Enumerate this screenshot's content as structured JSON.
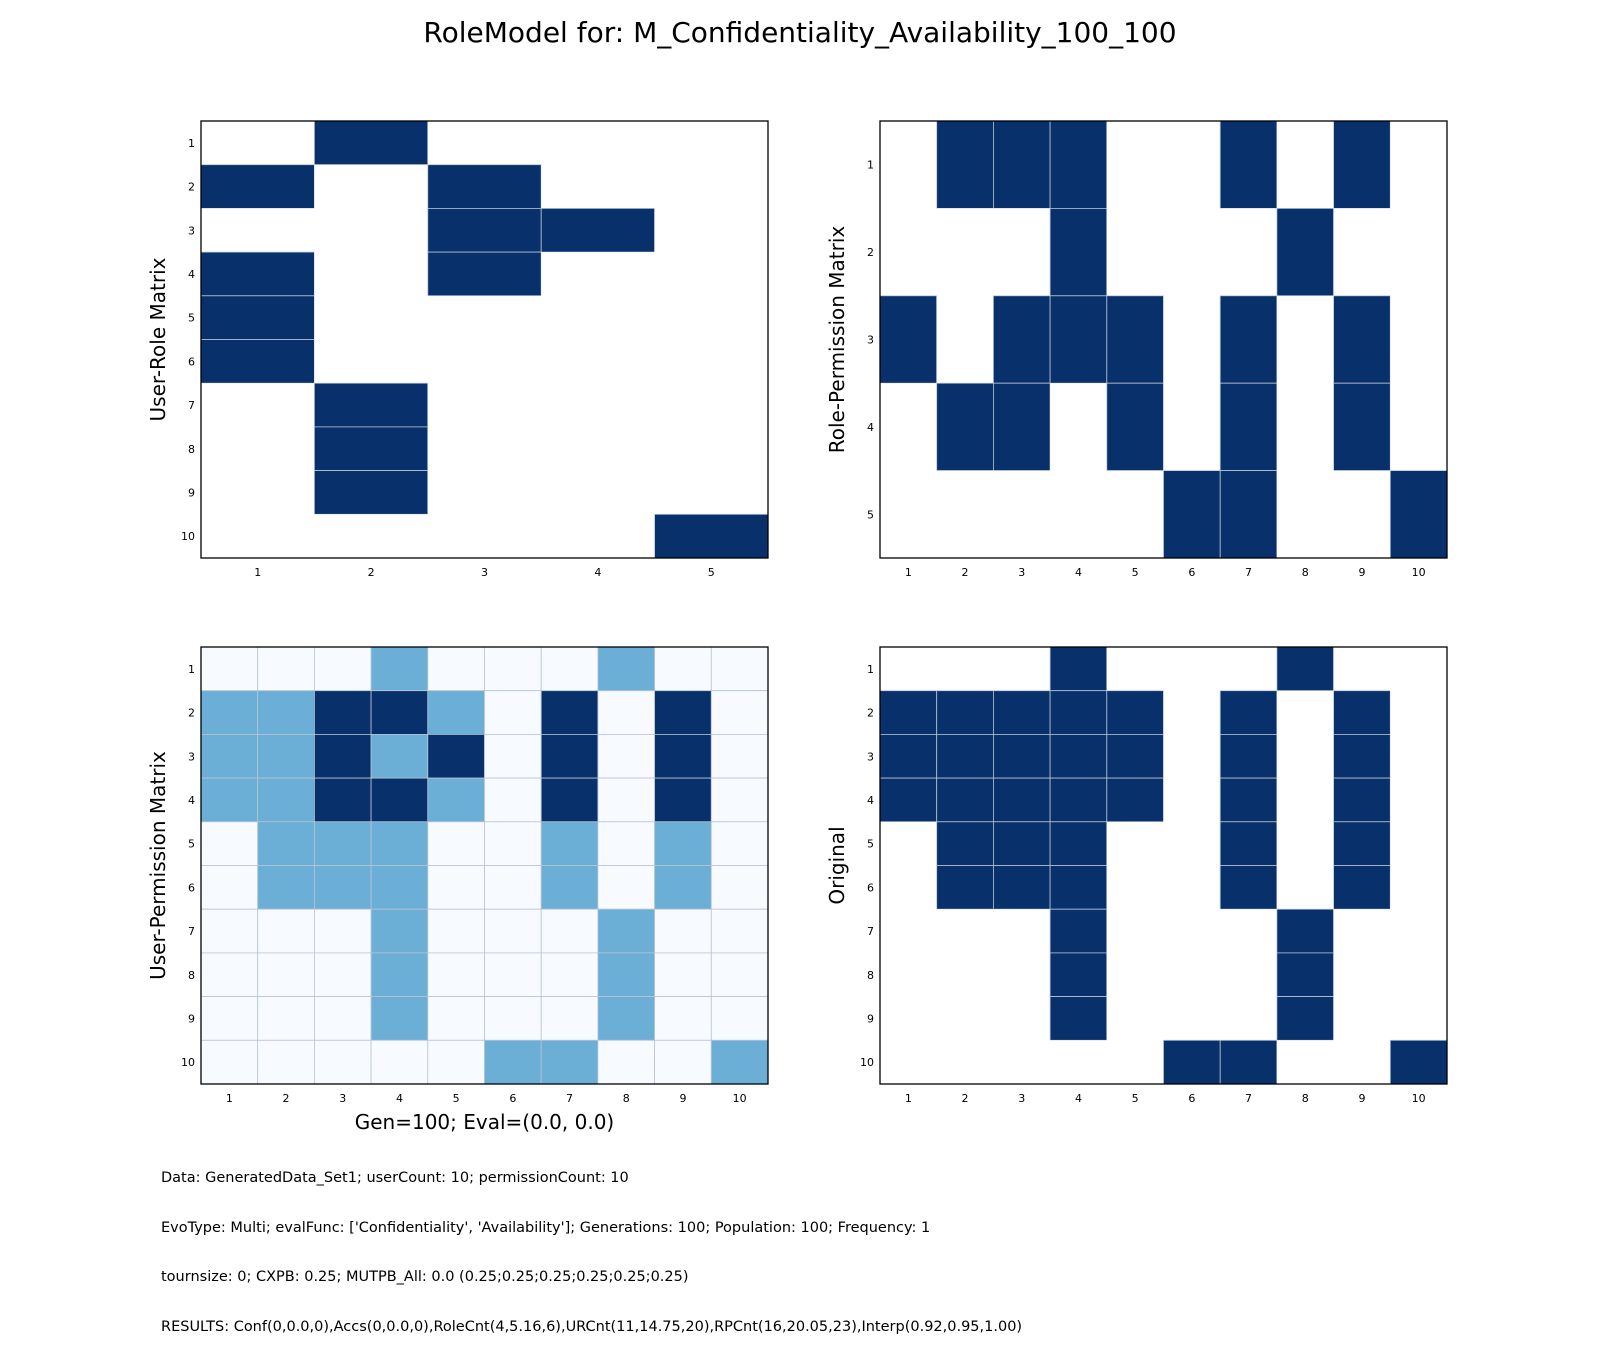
{
  "title": "RoleModel for: M_Confidentiality_Availability_100_100",
  "colors": {
    "dark": "#08306b",
    "mid": "#6baed6",
    "light": "#f7fbff",
    "white": "#ffffff",
    "grid": "#b8c4d6"
  },
  "chart_data": [
    {
      "type": "heatmap",
      "ylabel": "User-Role Matrix",
      "xlabel": "",
      "x_ticks": [
        "1",
        "2",
        "3",
        "4",
        "5"
      ],
      "y_ticks": [
        "1",
        "2",
        "3",
        "4",
        "5",
        "6",
        "7",
        "8",
        "9",
        "10"
      ],
      "values": [
        [
          0,
          1,
          0,
          0,
          0
        ],
        [
          1,
          0,
          1,
          0,
          0
        ],
        [
          0,
          0,
          1,
          1,
          0
        ],
        [
          1,
          0,
          1,
          0,
          0
        ],
        [
          1,
          0,
          0,
          0,
          0
        ],
        [
          1,
          0,
          0,
          0,
          0
        ],
        [
          0,
          1,
          0,
          0,
          0
        ],
        [
          0,
          1,
          0,
          0,
          0
        ],
        [
          0,
          1,
          0,
          0,
          0
        ],
        [
          0,
          0,
          0,
          0,
          1
        ]
      ],
      "colormap": "binary-blue"
    },
    {
      "type": "heatmap",
      "ylabel": "Role-Permission Matrix",
      "xlabel": "",
      "x_ticks": [
        "1",
        "2",
        "3",
        "4",
        "5",
        "6",
        "7",
        "8",
        "9",
        "10"
      ],
      "y_ticks": [
        "1",
        "2",
        "3",
        "4",
        "5"
      ],
      "values": [
        [
          0,
          1,
          1,
          1,
          0,
          0,
          1,
          0,
          1,
          0
        ],
        [
          0,
          0,
          0,
          1,
          0,
          0,
          0,
          1,
          0,
          0
        ],
        [
          1,
          0,
          1,
          1,
          1,
          0,
          1,
          0,
          1,
          0
        ],
        [
          0,
          1,
          1,
          0,
          1,
          0,
          1,
          0,
          1,
          0
        ],
        [
          0,
          0,
          0,
          0,
          0,
          1,
          1,
          0,
          0,
          1
        ]
      ],
      "colormap": "binary-blue"
    },
    {
      "type": "heatmap",
      "ylabel": "User-Permission Matrix",
      "xlabel": "Gen=100; Eval=(0.0, 0.0)",
      "x_ticks": [
        "1",
        "2",
        "3",
        "4",
        "5",
        "6",
        "7",
        "8",
        "9",
        "10"
      ],
      "y_ticks": [
        "1",
        "2",
        "3",
        "4",
        "5",
        "6",
        "7",
        "8",
        "9",
        "10"
      ],
      "values": [
        [
          0,
          0,
          0,
          1,
          0,
          0,
          0,
          1,
          0,
          0
        ],
        [
          1,
          1,
          2,
          2,
          1,
          0,
          2,
          0,
          2,
          0
        ],
        [
          1,
          1,
          2,
          1,
          2,
          0,
          2,
          0,
          2,
          0
        ],
        [
          1,
          1,
          2,
          2,
          1,
          0,
          2,
          0,
          2,
          0
        ],
        [
          0,
          1,
          1,
          1,
          0,
          0,
          1,
          0,
          1,
          0
        ],
        [
          0,
          1,
          1,
          1,
          0,
          0,
          1,
          0,
          1,
          0
        ],
        [
          0,
          0,
          0,
          1,
          0,
          0,
          0,
          1,
          0,
          0
        ],
        [
          0,
          0,
          0,
          1,
          0,
          0,
          0,
          1,
          0,
          0
        ],
        [
          0,
          0,
          0,
          1,
          0,
          0,
          0,
          1,
          0,
          0
        ],
        [
          0,
          0,
          0,
          0,
          0,
          1,
          1,
          0,
          0,
          1
        ]
      ],
      "colormap": "three-level-blue"
    },
    {
      "type": "heatmap",
      "ylabel": "Original",
      "xlabel": "",
      "x_ticks": [
        "1",
        "2",
        "3",
        "4",
        "5",
        "6",
        "7",
        "8",
        "9",
        "10"
      ],
      "y_ticks": [
        "1",
        "2",
        "3",
        "4",
        "5",
        "6",
        "7",
        "8",
        "9",
        "10"
      ],
      "values": [
        [
          0,
          0,
          0,
          1,
          0,
          0,
          0,
          1,
          0,
          0
        ],
        [
          1,
          1,
          1,
          1,
          1,
          0,
          1,
          0,
          1,
          0
        ],
        [
          1,
          1,
          1,
          1,
          1,
          0,
          1,
          0,
          1,
          0
        ],
        [
          1,
          1,
          1,
          1,
          1,
          0,
          1,
          0,
          1,
          0
        ],
        [
          0,
          1,
          1,
          1,
          0,
          0,
          1,
          0,
          1,
          0
        ],
        [
          0,
          1,
          1,
          1,
          0,
          0,
          1,
          0,
          1,
          0
        ],
        [
          0,
          0,
          0,
          1,
          0,
          0,
          0,
          1,
          0,
          0
        ],
        [
          0,
          0,
          0,
          1,
          0,
          0,
          0,
          1,
          0,
          0
        ],
        [
          0,
          0,
          0,
          1,
          0,
          0,
          0,
          1,
          0,
          0
        ],
        [
          0,
          0,
          0,
          0,
          0,
          1,
          1,
          0,
          0,
          1
        ]
      ],
      "colormap": "binary-blue"
    }
  ],
  "footer": {
    "line1": "Data: GeneratedData_Set1; userCount: 10; permissionCount: 10",
    "line2": "EvoType: Multi; evalFunc: ['Confidentiality', 'Availability']; Generations: 100; Population: 100; Frequency: 1",
    "line3": "tournsize: 0; CXPB: 0.25; MUTPB_All: 0.0 (0.25;0.25;0.25;0.25;0.25;0.25)",
    "line4": "RESULTS: Conf(0,0.0,0),Accs(0,0.0,0),RoleCnt(4,5.16,6),URCnt(11,14.75,20),RPCnt(16,20.05,23),Interp(0.92,0.95,1.00)"
  }
}
